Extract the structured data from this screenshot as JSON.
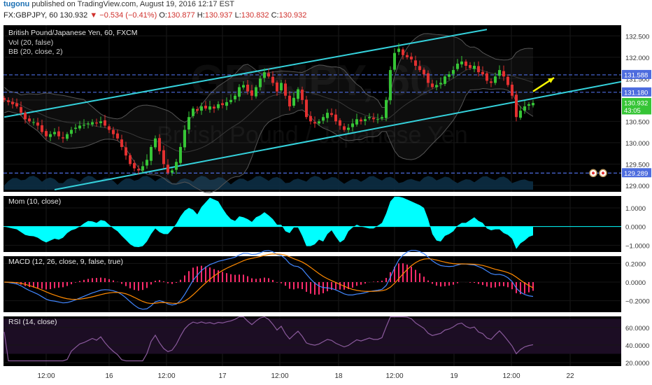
{
  "header": {
    "user": "tugonu",
    "published_text": "published on TradingView.com, August 19, 2016 12:17 EST",
    "symbol_tf": "FX:GBPJPY, 60",
    "last": "130.932",
    "change_arrow": "▼",
    "change": "−0.534 (−0.41%)",
    "o_label": "O:",
    "o": "130.877",
    "h_label": "H:",
    "h": "130.937",
    "l_label": "L:",
    "l": "130.832",
    "c_label": "C:",
    "c": "130.932"
  },
  "watermark": "GBPJPY, 60",
  "watermark_sub": "British Pound / Japanese Yen",
  "colors": {
    "background": "#000000",
    "candle_up": "#36c536",
    "candle_down": "#e23030",
    "channel": "#35d2dc",
    "hline": "#4d6cde",
    "bb": "#555555",
    "volume": "#0c2e44",
    "momentum": "#00ffff",
    "macd_line": "#4287ff",
    "signal_line": "#ff8a00",
    "macd_hist": "#ff2b6b",
    "rsi": "#8a5a9c",
    "rsi_band": "#1c0d24",
    "arrow": "#f5f500",
    "separator": "#3a3a3a"
  },
  "chart_data": [
    {
      "type": "candlestick",
      "title": "British Pound/Japanese Yen, 60, FXCM",
      "indicators": [
        "Vol (20, false)",
        "BB (20, close, 2)"
      ],
      "ylim": [
        128.9,
        132.75
      ],
      "y_ticks": [
        129.0,
        129.5,
        130.0,
        130.5,
        131.0,
        131.5,
        132.0,
        132.5
      ],
      "y_tick_labels": [
        "129.000",
        "129.500",
        "130.000",
        "130.500",
        "131.000",
        "131.500",
        "132.000",
        "132.500"
      ],
      "x_tick_labels": [
        "12:00",
        "16",
        "12:00",
        "17",
        "12:00",
        "18",
        "12:00",
        "19",
        "12:00",
        "22"
      ],
      "price_labels": [
        {
          "text": "131.588",
          "value": 131.588,
          "color": "#4d6cde"
        },
        {
          "text": "131.180",
          "value": 131.18,
          "color": "#4d6cde"
        },
        {
          "text": "130.932",
          "value": 130.932,
          "color": "#36c536"
        },
        {
          "text": "43:05",
          "value": 130.76,
          "color": "#36c536"
        },
        {
          "text": "129.289",
          "value": 129.289,
          "color": "#4d6cde"
        }
      ],
      "horizontal_lines": [
        131.588,
        131.18,
        129.289
      ],
      "channel": {
        "upper": [
          [
            0,
            130.6
          ],
          [
            115,
            132.65
          ]
        ],
        "lower": [
          [
            12,
            128.9
          ],
          [
            152,
            131.52
          ]
        ]
      },
      "arrow": {
        "from": [
          126,
          131.2
        ],
        "to": [
          131,
          131.52
        ]
      },
      "closes": [
        131.0,
        130.95,
        130.9,
        130.85,
        130.7,
        130.55,
        130.5,
        130.48,
        130.4,
        130.25,
        130.15,
        130.2,
        130.25,
        130.15,
        130.1,
        130.2,
        130.3,
        130.35,
        130.4,
        130.42,
        130.45,
        130.48,
        130.45,
        130.5,
        130.4,
        130.3,
        130.2,
        130.1,
        129.9,
        129.7,
        129.5,
        129.4,
        129.35,
        129.45,
        129.6,
        129.9,
        130.1,
        129.8,
        129.5,
        129.3,
        129.35,
        129.55,
        129.9,
        130.3,
        130.6,
        130.8,
        130.75,
        130.85,
        130.8,
        130.85,
        130.8,
        130.9,
        130.88,
        130.95,
        131.0,
        131.1,
        131.3,
        131.35,
        131.2,
        131.1,
        131.3,
        131.5,
        131.65,
        131.55,
        131.4,
        131.2,
        131.4,
        131.1,
        130.85,
        131.05,
        131.25,
        131.0,
        130.6,
        130.5,
        130.45,
        130.5,
        130.6,
        130.7,
        130.65,
        130.5,
        130.4,
        130.3,
        130.35,
        130.45,
        130.55,
        130.5,
        130.55,
        130.6,
        130.55,
        130.55,
        130.6,
        131.0,
        131.7,
        132.1,
        132.2,
        132.05,
        132.0,
        131.95,
        131.8,
        131.7,
        131.6,
        131.4,
        131.3,
        131.35,
        131.4,
        131.55,
        131.6,
        131.7,
        131.85,
        131.9,
        131.8,
        131.75,
        131.8,
        131.65,
        131.6,
        131.45,
        131.4,
        131.55,
        131.7,
        131.55,
        131.35,
        131.1,
        130.6,
        130.75,
        130.85,
        130.9,
        130.93
      ],
      "momentum": {
        "title": "Mom (10, close)",
        "ylim": [
          -1.25,
          1.75
        ],
        "y_ticks": [
          1.0,
          0.0,
          -1.0
        ],
        "y_tick_labels": [
          "1.0000",
          "0.0000",
          "−1.0000"
        ]
      },
      "macd": {
        "title": "MACD (12, 26, close, 9, false, true)",
        "ylim": [
          -0.3,
          0.3
        ],
        "y_ticks": [
          0.2,
          0.0,
          -0.2
        ],
        "y_tick_labels": [
          "0.2000",
          "0.0000",
          "−0.2000"
        ]
      },
      "rsi": {
        "title": "RSI (14, close)",
        "ylim": [
          16,
          75
        ],
        "y_ticks": [
          60,
          40,
          20
        ],
        "y_tick_labels": [
          "60.0000",
          "40.0000",
          "20.0000"
        ],
        "band": [
          30,
          70
        ]
      }
    }
  ]
}
